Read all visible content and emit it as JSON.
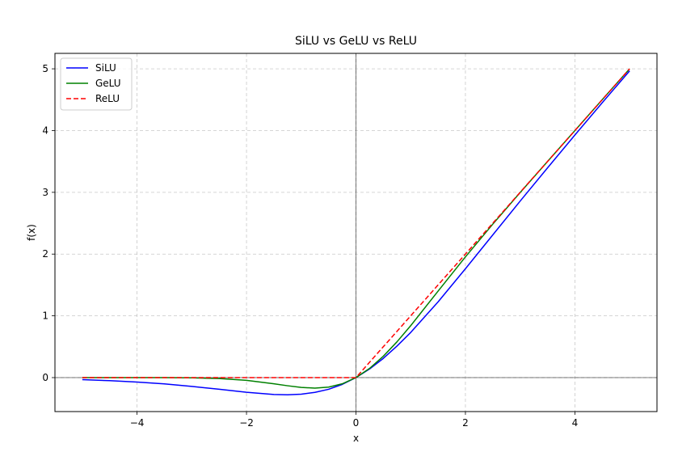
{
  "chart_data": {
    "type": "line",
    "title": "SiLU vs GeLU vs ReLU",
    "xlabel": "x",
    "ylabel": "f(x)",
    "xlim": [
      -5.5,
      5.5
    ],
    "ylim": [
      -0.55,
      5.25
    ],
    "x_ticks": [
      -4,
      -2,
      0,
      2,
      4
    ],
    "y_ticks": [
      0,
      1,
      2,
      3,
      4,
      5
    ],
    "x_tick_labels": [
      "−4",
      "−2",
      "0",
      "2",
      "4"
    ],
    "y_tick_labels": [
      "0",
      "1",
      "2",
      "3",
      "4",
      "5"
    ],
    "grid": true,
    "legend_position": "top-left",
    "x": [
      -5.0,
      -4.5,
      -4.0,
      -3.5,
      -3.0,
      -2.5,
      -2.0,
      -1.5,
      -1.25,
      -1.0,
      -0.75,
      -0.5,
      -0.25,
      0.0,
      0.25,
      0.5,
      0.75,
      1.0,
      1.5,
      2.0,
      2.5,
      3.0,
      3.5,
      4.0,
      4.5,
      5.0
    ],
    "series": [
      {
        "name": "SiLU",
        "color": "#0000ff",
        "style": "solid",
        "values": [
          -0.033,
          -0.05,
          -0.072,
          -0.102,
          -0.142,
          -0.189,
          -0.238,
          -0.274,
          -0.278,
          -0.269,
          -0.239,
          -0.189,
          -0.11,
          0.0,
          0.14,
          0.311,
          0.511,
          0.731,
          1.226,
          1.762,
          2.311,
          2.858,
          3.396,
          3.928,
          4.451,
          4.967
        ]
      },
      {
        "name": "GeLU",
        "color": "#008000",
        "style": "solid",
        "values": [
          0.0,
          0.0,
          -0.0001,
          -0.0008,
          -0.004,
          -0.015,
          -0.045,
          -0.1,
          -0.132,
          -0.159,
          -0.17,
          -0.154,
          -0.1,
          0.0,
          0.15,
          0.346,
          0.58,
          0.841,
          1.4,
          1.955,
          2.485,
          2.996,
          3.499,
          4.0,
          4.5,
          5.0
        ]
      },
      {
        "name": "ReLU",
        "color": "#ff0000",
        "style": "dashed",
        "values": [
          0.0,
          0.0,
          0.0,
          0.0,
          0.0,
          0.0,
          0.0,
          0.0,
          0.0,
          0.0,
          0.0,
          0.0,
          0.0,
          0.0,
          0.25,
          0.5,
          0.75,
          1.0,
          1.5,
          2.0,
          2.5,
          3.0,
          3.5,
          4.0,
          4.5,
          5.0
        ]
      }
    ]
  }
}
